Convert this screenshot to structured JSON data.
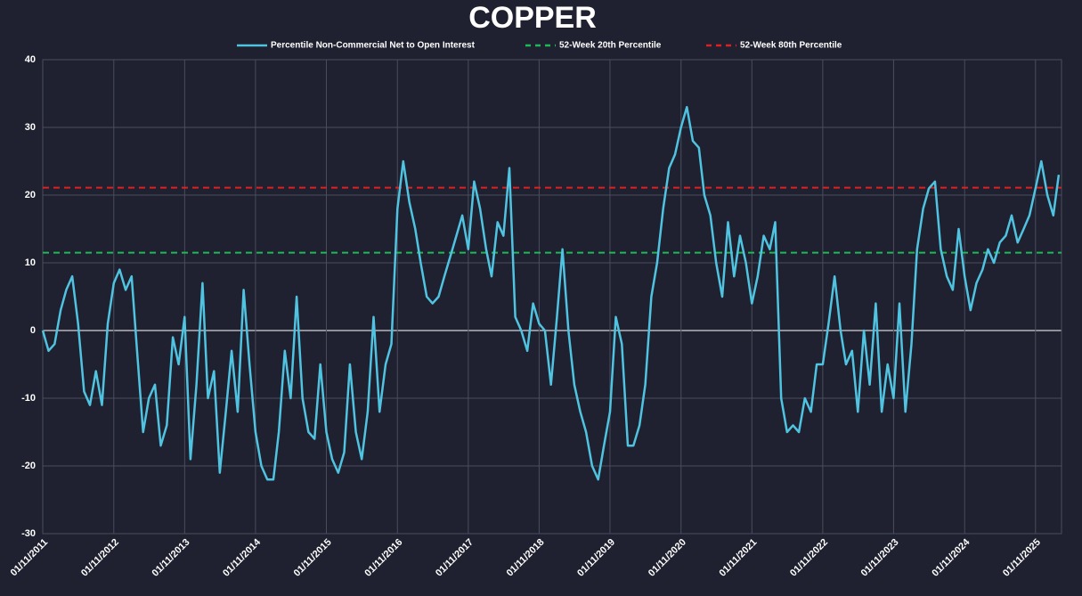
{
  "chart_data": {
    "type": "line",
    "title": "COPPER",
    "x": [
      "2011-11-01",
      "2011-12-01",
      "2012-01-01",
      "2012-02-01",
      "2012-03-01",
      "2012-04-01",
      "2012-05-01",
      "2012-06-01",
      "2012-07-01",
      "2012-08-01",
      "2012-09-01",
      "2012-10-01",
      "2012-11-01",
      "2012-12-01",
      "2013-01-01",
      "2013-02-01",
      "2013-03-01",
      "2013-04-01",
      "2013-05-01",
      "2013-06-01",
      "2013-07-01",
      "2013-08-01",
      "2013-09-01",
      "2013-10-01",
      "2013-11-01",
      "2013-12-01",
      "2014-01-01",
      "2014-02-01",
      "2014-03-01",
      "2014-04-01",
      "2014-05-01",
      "2014-06-01",
      "2014-07-01",
      "2014-08-01",
      "2014-09-01",
      "2014-10-01",
      "2014-11-01",
      "2014-12-01",
      "2015-01-01",
      "2015-02-01",
      "2015-03-01",
      "2015-04-01",
      "2015-05-01",
      "2015-06-01",
      "2015-07-01",
      "2015-08-01",
      "2015-09-01",
      "2015-10-01",
      "2015-11-01",
      "2015-12-01",
      "2016-01-01",
      "2016-02-01",
      "2016-03-01",
      "2016-04-01",
      "2016-05-01",
      "2016-06-01",
      "2016-07-01",
      "2016-08-01",
      "2016-09-01",
      "2016-10-01",
      "2016-11-01",
      "2016-12-01",
      "2017-01-01",
      "2017-02-01",
      "2017-03-01",
      "2017-04-01",
      "2017-05-01",
      "2017-06-01",
      "2017-07-01",
      "2017-08-01",
      "2017-09-01",
      "2017-10-01",
      "2017-11-01",
      "2017-12-01",
      "2018-01-01",
      "2018-02-01",
      "2018-03-01",
      "2018-04-01",
      "2018-05-01",
      "2018-06-01",
      "2018-07-01",
      "2018-08-01",
      "2018-09-01",
      "2018-10-01",
      "2018-11-01",
      "2018-12-01",
      "2019-01-01",
      "2019-02-01",
      "2019-03-01",
      "2019-04-01",
      "2019-05-01",
      "2019-06-01",
      "2019-07-01",
      "2019-08-01",
      "2019-09-01",
      "2019-10-01",
      "2019-11-01",
      "2019-12-01",
      "2020-01-01",
      "2020-02-01",
      "2020-03-01",
      "2020-04-01",
      "2020-05-01",
      "2020-06-01",
      "2020-07-01",
      "2020-08-01",
      "2020-09-01",
      "2020-10-01",
      "2020-11-01",
      "2020-12-01",
      "2021-01-01",
      "2021-02-01",
      "2021-03-01",
      "2021-04-01",
      "2021-05-01",
      "2021-06-01",
      "2021-07-01",
      "2021-08-01",
      "2021-09-01",
      "2021-10-01",
      "2021-11-01",
      "2021-12-01",
      "2022-01-01",
      "2022-02-01",
      "2022-03-01",
      "2022-04-01",
      "2022-05-01",
      "2022-06-01",
      "2022-07-01",
      "2022-08-01",
      "2022-09-01",
      "2022-10-01",
      "2022-11-01",
      "2022-12-01",
      "2023-01-01",
      "2023-02-01",
      "2023-03-01",
      "2023-04-01",
      "2023-05-01",
      "2023-06-01",
      "2023-07-01",
      "2023-08-01",
      "2023-09-01",
      "2023-10-01",
      "2023-11-01",
      "2023-12-01",
      "2024-01-01",
      "2024-02-01",
      "2024-03-01",
      "2024-04-01",
      "2024-05-01",
      "2024-06-01",
      "2024-07-01",
      "2024-08-01",
      "2024-09-01",
      "2024-10-01",
      "2024-11-01",
      "2024-12-01",
      "2025-01-01",
      "2025-02-01",
      "2025-03-01",
      "2025-04-01",
      "2025-05-01",
      "2025-06-01",
      "2025-07-01",
      "2025-08-01",
      "2025-09-01",
      "2025-10-01",
      "2025-11-01",
      "2025-12-01",
      "2026-01-01",
      "2026-02-01",
      "2026-03-01"
    ],
    "series": [
      {
        "name": "Percentile Non-Commercial Net to Open Interest",
        "color": "#4fc3e0",
        "values": [
          0,
          -3,
          -2,
          3,
          6,
          8,
          1,
          -9,
          -11,
          -6,
          -11,
          1,
          7,
          9,
          6,
          8,
          -3,
          -15,
          -10,
          -8,
          -17,
          -14,
          -1,
          -5,
          2,
          -19,
          -8,
          7,
          -10,
          -6,
          -21,
          -12,
          -3,
          -12,
          6,
          -5,
          -15,
          -20,
          -22,
          -22,
          -15,
          -3,
          -10,
          5,
          -10,
          -15,
          -16,
          -5,
          -15,
          -19,
          -21,
          -18,
          -5,
          -15,
          -19,
          -12,
          2,
          -12,
          -5,
          -2,
          18,
          25,
          19,
          15,
          10,
          5,
          4,
          5,
          8,
          11,
          14,
          17,
          12,
          22,
          18,
          12,
          8,
          16,
          14,
          24,
          2,
          0,
          -3,
          4,
          1,
          0,
          -8,
          2,
          12,
          0,
          -8,
          -12,
          -15,
          -20,
          -22,
          -17,
          -12,
          2,
          -2,
          -17,
          -17,
          -14,
          -8,
          5,
          10,
          18,
          24,
          26,
          30,
          33,
          28,
          27,
          20,
          17,
          10,
          5,
          16,
          8,
          14,
          10,
          4,
          8,
          14,
          12,
          16,
          -10,
          -15,
          -14,
          -15,
          -10,
          -12,
          -5,
          -5,
          1,
          8,
          0,
          -5,
          -3,
          -12,
          0,
          -8,
          4,
          -12,
          -5,
          -10,
          4,
          -12,
          -2,
          12,
          18,
          21,
          22,
          12,
          8,
          6,
          15,
          8,
          3,
          7,
          9,
          12,
          10,
          13,
          14,
          17,
          13,
          15,
          17,
          21,
          25,
          20,
          17,
          23
        ]
      }
    ],
    "reference_lines": [
      {
        "name": "52-Week 20th Percentile",
        "color": "#1db954",
        "value": 11.5
      },
      {
        "name": "52-Week 80th Percentile",
        "color": "#e02020",
        "value": 21.1
      }
    ],
    "xlim": [
      "2011-11-01",
      "2026-03-15"
    ],
    "xticks": [
      {
        "value": "2011-11-01",
        "label": "01/11/2011"
      },
      {
        "value": "2012-11-01",
        "label": "01/11/2012"
      },
      {
        "value": "2013-11-01",
        "label": "01/11/2013"
      },
      {
        "value": "2014-11-01",
        "label": "01/11/2014"
      },
      {
        "value": "2015-11-01",
        "label": "01/11/2015"
      },
      {
        "value": "2016-11-01",
        "label": "01/11/2016"
      },
      {
        "value": "2017-11-01",
        "label": "01/11/2017"
      },
      {
        "value": "2018-11-01",
        "label": "01/11/2018"
      },
      {
        "value": "2019-11-01",
        "label": "01/11/2019"
      },
      {
        "value": "2020-11-01",
        "label": "01/11/2020"
      },
      {
        "value": "2021-11-01",
        "label": "01/11/2021"
      },
      {
        "value": "2022-11-01",
        "label": "01/11/2022"
      },
      {
        "value": "2023-11-01",
        "label": "01/11/2023"
      },
      {
        "value": "2024-11-01",
        "label": "01/11/2024"
      },
      {
        "value": "2025-11-01",
        "label": "01/11/2025"
      }
    ],
    "ylim": [
      -30,
      40
    ],
    "yticks": [
      -30,
      -20,
      -10,
      0,
      10,
      20,
      30,
      40
    ],
    "grid": true,
    "legend": "top"
  }
}
